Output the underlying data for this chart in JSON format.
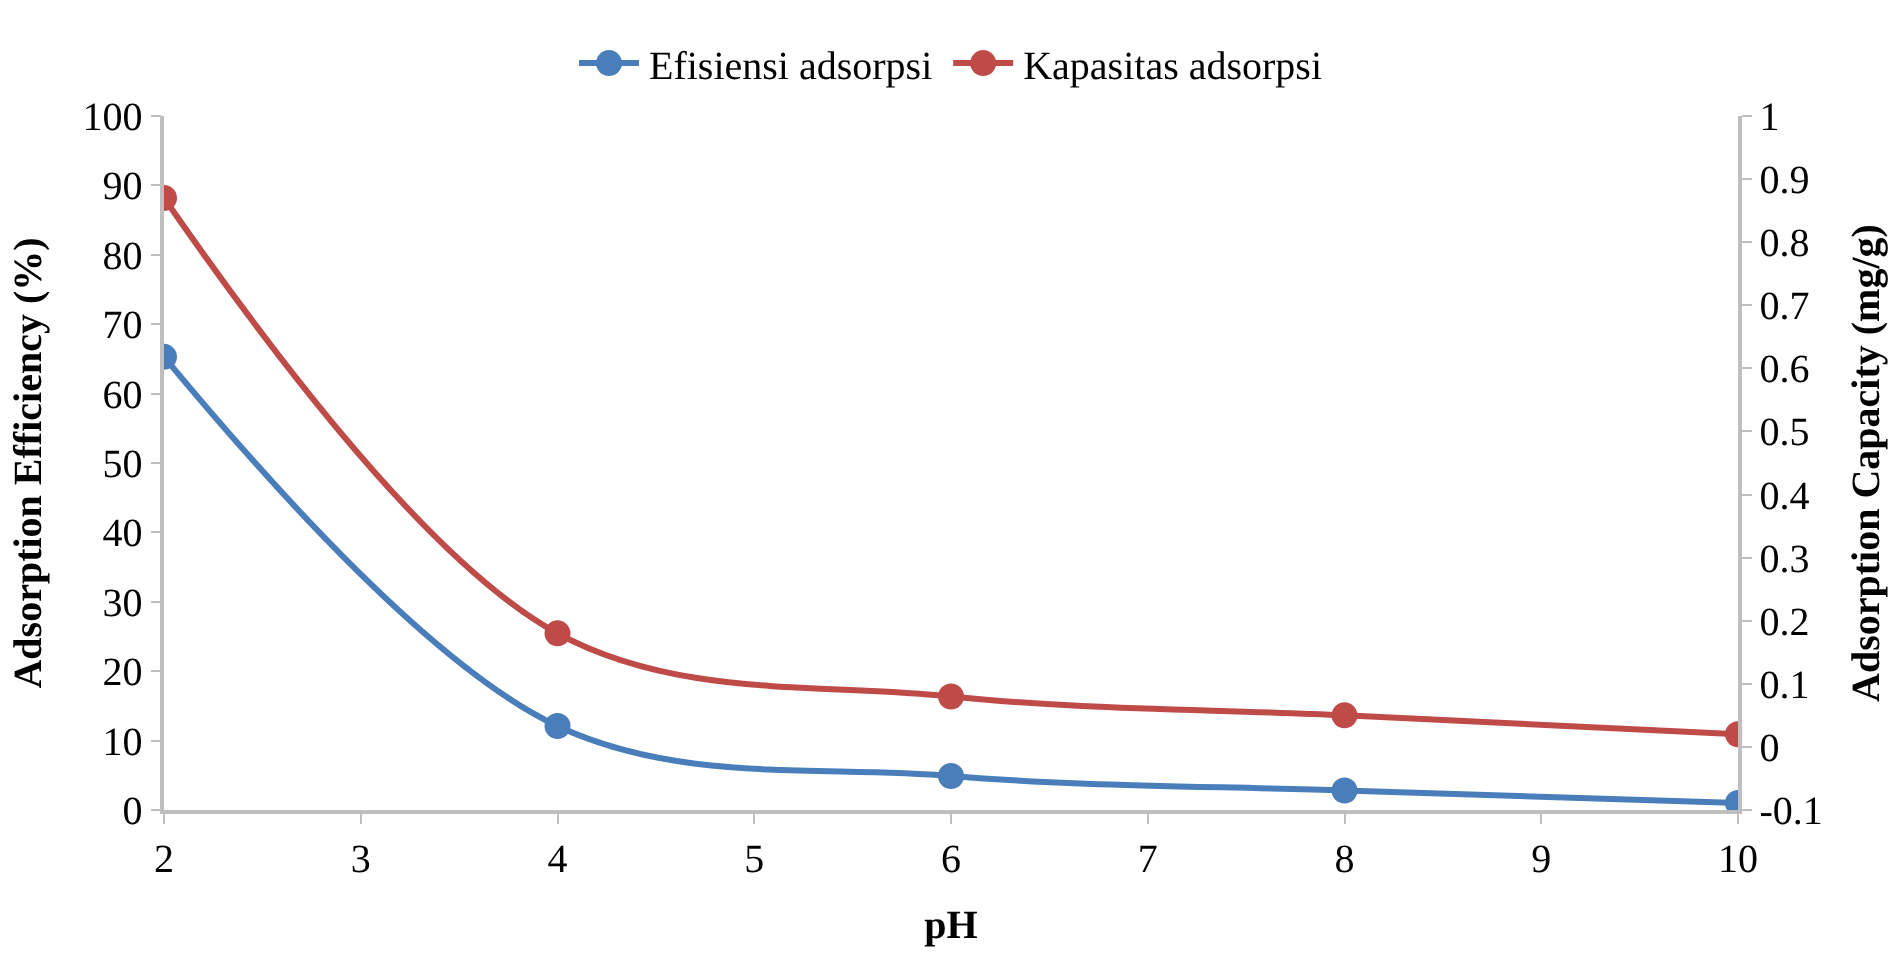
{
  "chart_data": {
    "type": "line",
    "xlabel": "pH",
    "ylabel": "Adsorption Efficiency (%)",
    "y2label": "Adsorption Capacity (mg/g)",
    "x": [
      2,
      4,
      6,
      8,
      10
    ],
    "series": [
      {
        "name": "Efisiensi adsorpsi",
        "color": "#4a7ebb",
        "values": [
          65.3,
          12.1,
          4.9,
          2.8,
          1.0
        ]
      },
      {
        "name": "Kapasitas adsorpsi",
        "color": "#be4b48",
        "axis": "y2",
        "values": [
          0.87,
          0.18,
          0.08,
          0.05,
          0.02
        ]
      }
    ],
    "xlim": [
      2,
      10
    ],
    "xticks": [
      2,
      3,
      4,
      5,
      6,
      7,
      8,
      9,
      10
    ],
    "ylim": [
      0,
      100
    ],
    "yticks": [
      0,
      10,
      20,
      30,
      40,
      50,
      60,
      70,
      80,
      90,
      100
    ],
    "y2lim": [
      -0.1,
      1
    ],
    "y2ticks": [
      -0.1,
      0,
      0.1,
      0.2,
      0.3,
      0.4,
      0.5,
      0.6,
      0.7,
      0.8,
      0.9,
      1
    ],
    "legend": "top",
    "marker": "circle",
    "line_style": "solid"
  }
}
